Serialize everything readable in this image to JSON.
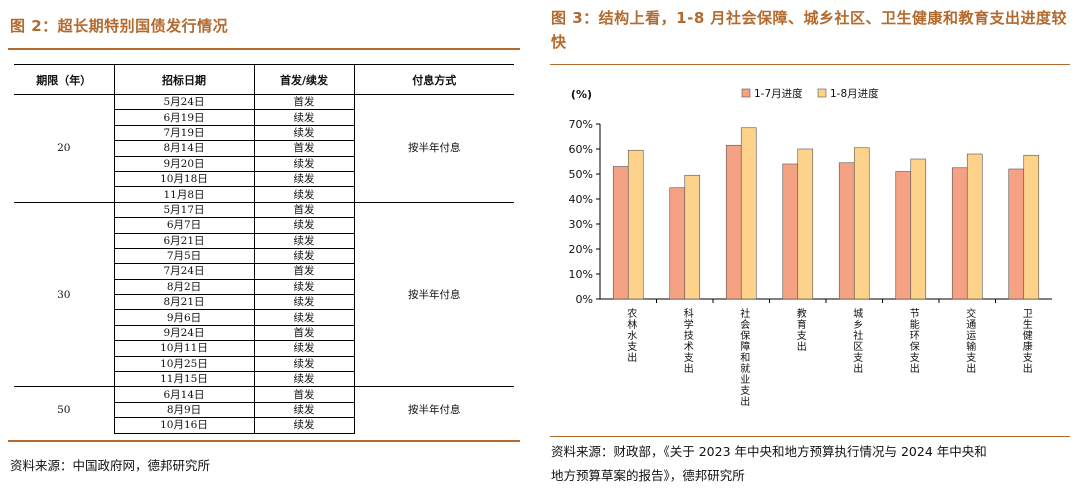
{
  "left_figure": {
    "title": "图 2：超长期特别国债发行情况",
    "table": {
      "headers": [
        "期限（年）",
        "招标日期",
        "首发/续发",
        "付息方式"
      ],
      "groups": [
        {
          "term": "20",
          "payment": "按半年付息",
          "rows": [
            {
              "date": "5月24日",
              "type": "首发"
            },
            {
              "date": "6月19日",
              "type": "续发"
            },
            {
              "date": "7月19日",
              "type": "续发"
            },
            {
              "date": "8月14日",
              "type": "首发"
            },
            {
              "date": "9月20日",
              "type": "续发"
            },
            {
              "date": "10月18日",
              "type": "续发"
            },
            {
              "date": "11月8日",
              "type": "续发"
            }
          ]
        },
        {
          "term": "30",
          "payment": "按半年付息",
          "rows": [
            {
              "date": "5月17日",
              "type": "首发"
            },
            {
              "date": "6月7日",
              "type": "续发"
            },
            {
              "date": "6月21日",
              "type": "续发"
            },
            {
              "date": "7月5日",
              "type": "续发"
            },
            {
              "date": "7月24日",
              "type": "首发"
            },
            {
              "date": "8月2日",
              "type": "续发"
            },
            {
              "date": "8月21日",
              "type": "续发"
            },
            {
              "date": "9月6日",
              "type": "续发"
            },
            {
              "date": "9月24日",
              "type": "首发"
            },
            {
              "date": "10月11日",
              "type": "续发"
            },
            {
              "date": "10月25日",
              "type": "续发"
            },
            {
              "date": "11月15日",
              "type": "续发"
            }
          ]
        },
        {
          "term": "50",
          "payment": "按半年付息",
          "rows": [
            {
              "date": "6月14日",
              "type": "首发"
            },
            {
              "date": "8月9日",
              "type": "续发"
            },
            {
              "date": "10月16日",
              "type": "续发"
            }
          ]
        }
      ]
    },
    "source": "资料来源：中国政府网，德邦研究所"
  },
  "right_figure": {
    "title": "图 3：结构上看，1-8 月社会保障、城乡社区、卫生健康和教育支出进度较快",
    "source_line1": "资料来源：财政部，《关于 2023 年中央和地方预算执行情况与 2024 年中央和",
    "source_line2": "地方预算草案的报告》，德邦研究所"
  },
  "chart_data": {
    "type": "bar",
    "unit_label": "(%)",
    "categories": [
      "农林水支出",
      "科学技术支出",
      "社会保障和就业支出",
      "教育支出",
      "城乡社区支出",
      "节能环保支出",
      "交通运输支出",
      "卫生健康支出"
    ],
    "series": [
      {
        "name": "1-7月进度",
        "values": [
          53,
          44.5,
          61.5,
          54,
          54.5,
          51,
          52.5,
          52
        ],
        "color": "#f4a283"
      },
      {
        "name": "1-8月进度",
        "values": [
          59.5,
          49.5,
          68.5,
          60,
          60.5,
          56,
          58,
          57.5
        ],
        "color": "#fdd28a"
      }
    ],
    "ylim": [
      0,
      70
    ],
    "yticks": [
      "0%",
      "10%",
      "20%",
      "30%",
      "40%",
      "50%",
      "60%",
      "70%"
    ],
    "legend_position": "top"
  }
}
